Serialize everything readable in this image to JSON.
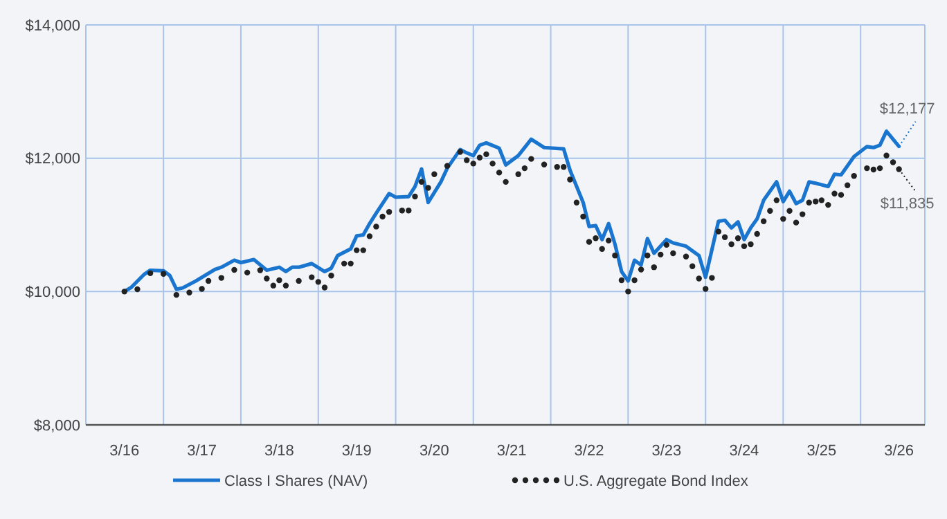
{
  "chart_data": {
    "type": "line",
    "xlim": [
      "2015-09",
      "2026-07"
    ],
    "xticks": [
      {
        "value": "2016-03",
        "label": "3/16"
      },
      {
        "value": "2016-09",
        "label": null
      },
      {
        "value": "2017-03",
        "label": "3/17"
      },
      {
        "value": "2017-09",
        "label": null
      },
      {
        "value": "2018-03",
        "label": "3/18"
      },
      {
        "value": "2018-09",
        "label": null
      },
      {
        "value": "2019-03",
        "label": "3/19"
      },
      {
        "value": "2019-09",
        "label": null
      },
      {
        "value": "2020-03",
        "label": "3/20"
      },
      {
        "value": "2020-09",
        "label": null
      },
      {
        "value": "2021-03",
        "label": "3/21"
      },
      {
        "value": "2021-09",
        "label": null
      },
      {
        "value": "2022-03",
        "label": "3/22"
      },
      {
        "value": "2022-09",
        "label": null
      },
      {
        "value": "2023-03",
        "label": "3/23"
      },
      {
        "value": "2023-09",
        "label": null
      },
      {
        "value": "2024-03",
        "label": "3/24"
      },
      {
        "value": "2024-09",
        "label": null
      },
      {
        "value": "2025-03",
        "label": "3/25"
      },
      {
        "value": "2025-09",
        "label": null
      },
      {
        "value": "2026-03",
        "label": "3/26"
      }
    ],
    "ylim": [
      8000,
      14000
    ],
    "yticks": [
      {
        "value": 8000,
        "label": "$8,000"
      },
      {
        "value": 10000,
        "label": "$10,000"
      },
      {
        "value": 12000,
        "label": "$12,000"
      },
      {
        "value": 14000,
        "label": "$14,000"
      }
    ],
    "grid": true,
    "legend": "bottom",
    "annotations": [
      {
        "text": "$12,177",
        "x": "2026-03",
        "y": 12177
      },
      {
        "text": "$11,835",
        "x": "2026-03",
        "y": 11835
      }
    ],
    "series": [
      {
        "name": "Class I Shares (NAV)",
        "color": "#1a75cf",
        "line_style": "solid",
        "marker": "none",
        "x": [
          "2016-03",
          "2016-04",
          "2016-06",
          "2016-07",
          "2016-09",
          "2016-10",
          "2016-11",
          "2016-12",
          "2017-02",
          "2017-05",
          "2017-06",
          "2017-08",
          "2017-09",
          "2017-11",
          "2018-01",
          "2018-03",
          "2018-04",
          "2018-05",
          "2018-06",
          "2018-08",
          "2018-10",
          "2018-11",
          "2018-12",
          "2019-02",
          "2019-03",
          "2019-04",
          "2019-05",
          "2019-06",
          "2019-08",
          "2019-09",
          "2019-11",
          "2019-12",
          "2020-01",
          "2020-02",
          "2020-04",
          "2020-05",
          "2020-07",
          "2020-08",
          "2020-09",
          "2020-10",
          "2020-11",
          "2021-01",
          "2021-02",
          "2021-04",
          "2021-06",
          "2021-08",
          "2021-11",
          "2021-12",
          "2022-02",
          "2022-03",
          "2022-04",
          "2022-05",
          "2022-06",
          "2022-07",
          "2022-08",
          "2022-09",
          "2022-10",
          "2022-11",
          "2022-12",
          "2023-01",
          "2023-03",
          "2023-04",
          "2023-06",
          "2023-08",
          "2023-09",
          "2023-11",
          "2023-12",
          "2024-01",
          "2024-02",
          "2024-03",
          "2024-04",
          "2024-05",
          "2024-06",
          "2024-08",
          "2024-09",
          "2024-10",
          "2024-11",
          "2024-12",
          "2025-01",
          "2025-02",
          "2025-04",
          "2025-05",
          "2025-06",
          "2025-08",
          "2025-10",
          "2025-11",
          "2025-12",
          "2026-01",
          "2026-03"
        ],
        "values": [
          10000,
          10060,
          10255,
          10320,
          10310,
          10240,
          10035,
          10055,
          10160,
          10330,
          10365,
          10470,
          10435,
          10480,
          10320,
          10365,
          10300,
          10365,
          10365,
          10420,
          10300,
          10350,
          10540,
          10640,
          10835,
          10850,
          11020,
          11175,
          11470,
          11415,
          11425,
          11575,
          11840,
          11335,
          11645,
          11850,
          12130,
          12080,
          12040,
          12195,
          12230,
          12150,
          11900,
          12040,
          12285,
          12160,
          12140,
          11820,
          11335,
          10975,
          10990,
          10780,
          11020,
          10710,
          10300,
          10160,
          10470,
          10400,
          10795,
          10575,
          10780,
          10730,
          10680,
          10540,
          10215,
          11055,
          11070,
          10955,
          11045,
          10780,
          10955,
          11090,
          11370,
          11645,
          11350,
          11505,
          11320,
          11370,
          11645,
          11625,
          11575,
          11760,
          11750,
          12025,
          12175,
          12160,
          12195,
          12405,
          12177
        ]
      },
      {
        "name": "U.S. Aggregate Bond Index",
        "type": "scatter",
        "color": "#222222",
        "marker": "circle",
        "x": [
          "2016-03",
          "2016-05",
          "2016-07",
          "2016-09",
          "2016-11",
          "2017-01",
          "2017-03",
          "2017-04",
          "2017-06",
          "2017-08",
          "2017-10",
          "2017-12",
          "2018-01",
          "2018-02",
          "2018-03",
          "2018-04",
          "2018-06",
          "2018-08",
          "2018-09",
          "2018-10",
          "2018-11",
          "2019-01",
          "2019-02",
          "2019-03",
          "2019-04",
          "2019-05",
          "2019-06",
          "2019-07",
          "2019-08",
          "2019-10",
          "2019-11",
          "2019-12",
          "2020-01",
          "2020-02",
          "2020-03",
          "2020-05",
          "2020-07",
          "2020-08",
          "2020-09",
          "2020-10",
          "2020-11",
          "2020-12",
          "2021-01",
          "2021-02",
          "2021-04",
          "2021-05",
          "2021-06",
          "2021-08",
          "2021-10",
          "2021-11",
          "2021-12",
          "2022-01",
          "2022-02",
          "2022-03",
          "2022-04",
          "2022-05",
          "2022-06",
          "2022-07",
          "2022-08",
          "2022-09",
          "2022-10",
          "2022-11",
          "2022-12",
          "2023-01",
          "2023-02",
          "2023-03",
          "2023-04",
          "2023-06",
          "2023-07",
          "2023-08",
          "2023-09",
          "2023-10",
          "2023-11",
          "2023-12",
          "2024-01",
          "2024-02",
          "2024-03",
          "2024-04",
          "2024-05",
          "2024-06",
          "2024-07",
          "2024-08",
          "2024-09",
          "2024-10",
          "2024-11",
          "2024-12",
          "2025-01",
          "2025-02",
          "2025-03",
          "2025-04",
          "2025-05",
          "2025-06",
          "2025-07",
          "2025-08",
          "2025-10",
          "2025-11",
          "2025-12",
          "2026-01",
          "2026-02",
          "2026-03"
        ],
        "values": [
          10000,
          10035,
          10275,
          10265,
          9950,
          9985,
          10040,
          10160,
          10205,
          10325,
          10285,
          10320,
          10195,
          10090,
          10170,
          10090,
          10160,
          10215,
          10145,
          10060,
          10240,
          10420,
          10420,
          10620,
          10620,
          10830,
          10975,
          11125,
          11195,
          11215,
          11215,
          11425,
          11645,
          11555,
          11760,
          11885,
          12095,
          11970,
          11920,
          12010,
          12060,
          11920,
          11785,
          11645,
          11760,
          11850,
          11990,
          11905,
          11870,
          11870,
          11680,
          11335,
          11125,
          10745,
          10800,
          10640,
          10765,
          10540,
          10170,
          10000,
          10170,
          10330,
          10540,
          10365,
          10555,
          10700,
          10575,
          10525,
          10380,
          10195,
          10040,
          10205,
          10900,
          10815,
          10710,
          10800,
          10680,
          10710,
          10865,
          11055,
          11210,
          11370,
          11090,
          11210,
          11035,
          11160,
          11335,
          11350,
          11370,
          11300,
          11470,
          11450,
          11595,
          11735,
          11850,
          11830,
          11850,
          12040,
          11940,
          11835
        ]
      }
    ]
  }
}
